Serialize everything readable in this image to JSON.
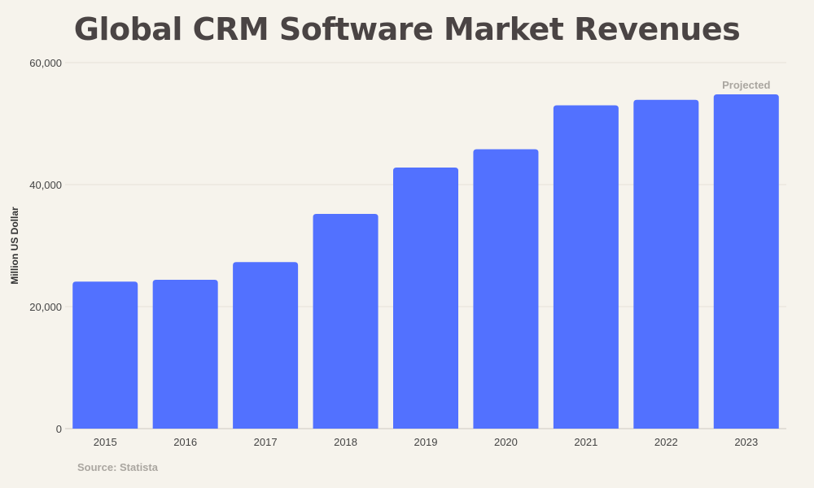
{
  "chart_data": {
    "type": "bar",
    "title": "Global CRM Software Market Revenues",
    "xlabel": "",
    "ylabel": "Million US Dollar",
    "categories": [
      "2015",
      "2016",
      "2017",
      "2018",
      "2019",
      "2020",
      "2021",
      "2022",
      "2023"
    ],
    "values": [
      24100,
      24400,
      27300,
      35200,
      42800,
      45800,
      53000,
      53900,
      54800
    ],
    "ylim": [
      0,
      60000
    ],
    "yticks": [
      0,
      20000,
      40000,
      60000
    ],
    "ytick_labels": [
      "0",
      "20,000",
      "40,000",
      "60,000"
    ],
    "grid": true,
    "annotations": [
      {
        "category": "2023",
        "text": "Projected"
      }
    ],
    "bar_color": "#5271ff",
    "source": "Source: Statista"
  }
}
